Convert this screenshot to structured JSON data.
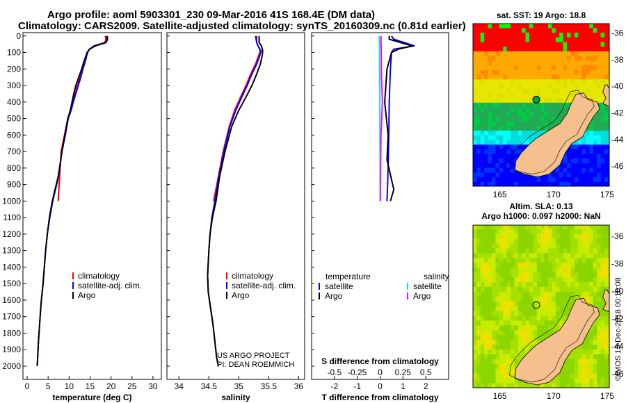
{
  "header": {
    "line1": "Argo profile: aoml 5903301_230 09-Mar-2016 41S 168.4E (DM data)",
    "line2": "Climatology: CARS2009. Satellite-adjusted climatology: synTS_20160309.nc (0.81d earlier)"
  },
  "colors": {
    "climatology": "#ff0000",
    "satellite": "#0000ff",
    "argo": "#000000",
    "satellite_s": "#00e5e5",
    "argo_s": "#ff00ff",
    "land": "#f5c08e"
  },
  "chart_data": [
    {
      "type": "line",
      "id": "temperature",
      "xlabel": "temperature (deg C)",
      "xlim": [
        -1,
        32
      ],
      "xticks": [
        0,
        5,
        10,
        15,
        20,
        25,
        30
      ],
      "ylim": [
        -20,
        2080
      ],
      "yticks": [
        0,
        100,
        200,
        300,
        400,
        500,
        600,
        700,
        800,
        900,
        1000,
        1100,
        1200,
        1300,
        1400,
        1500,
        1600,
        1700,
        1800,
        1900,
        2000
      ],
      "legend": [
        "climatology",
        "satellite-adj. clim.",
        "Argo"
      ],
      "series": [
        {
          "name": "climatology",
          "color": "#ff0000",
          "x": [
            18.6,
            18.8,
            18.5,
            16,
            14.8,
            14.3,
            13.8,
            13.2,
            12.6,
            12.0,
            11.4,
            10.9,
            10.4,
            9.7,
            8.9,
            8.1,
            7.4
          ],
          "y": [
            0,
            20,
            40,
            60,
            80,
            100,
            150,
            200,
            250,
            300,
            350,
            400,
            450,
            500,
            600,
            700,
            1000
          ]
        },
        {
          "name": "satellite-adj. clim.",
          "color": "#0000ff",
          "x": [
            19.1,
            19.2,
            18.8,
            16.3,
            14.9,
            14.4,
            13.9,
            13.3,
            12.8,
            12.2,
            11.6,
            11.0,
            10.5,
            9.8,
            9.1,
            8.3,
            7.5,
            6.1,
            5.4,
            4.8,
            4.4,
            3.8,
            3.4,
            3.1,
            2.7,
            2.4
          ],
          "y": [
            0,
            20,
            40,
            60,
            80,
            100,
            150,
            200,
            250,
            300,
            350,
            400,
            450,
            500,
            600,
            700,
            850,
            1000,
            1100,
            1200,
            1300,
            1500,
            1600,
            1700,
            1850,
            2000
          ]
        },
        {
          "name": "Argo",
          "color": "#000000",
          "x": [
            19.0,
            19.1,
            18.7,
            16.0,
            14.9,
            14.3,
            13.6,
            13.0,
            12.3,
            11.6,
            11.1,
            10.7,
            10.3,
            9.7,
            9.0,
            8.3,
            7.4,
            6.0,
            5.3,
            4.8,
            4.4,
            3.8,
            3.4,
            3.1,
            2.7,
            2.4
          ],
          "y": [
            0,
            20,
            40,
            60,
            80,
            100,
            150,
            200,
            250,
            300,
            350,
            400,
            450,
            500,
            600,
            700,
            850,
            1000,
            1100,
            1200,
            1300,
            1500,
            1600,
            1700,
            1850,
            2000
          ]
        }
      ]
    },
    {
      "type": "line",
      "id": "salinity",
      "xlabel": "salinity",
      "xlim": [
        33.8,
        36.1
      ],
      "xticks": [
        34,
        34.5,
        35,
        35.5,
        36
      ],
      "xtick_labels": [
        "34",
        "34.5",
        "35",
        "35.5",
        "36"
      ],
      "ylim": [
        -20,
        2080
      ],
      "legend": [
        "climatology",
        "satellite-adj. clim.",
        "Argo"
      ],
      "annotation": [
        "US ARGO PROJECT",
        "PI: DEAN ROEMMICH"
      ],
      "series": [
        {
          "name": "climatology",
          "color": "#ff0000",
          "x": [
            35.3,
            35.3,
            35.32,
            35.36,
            35.33,
            35.28,
            35.2,
            35.12,
            35.03,
            34.93,
            34.84,
            34.74,
            34.66,
            34.58
          ],
          "y": [
            0,
            40,
            60,
            90,
            120,
            170,
            230,
            300,
            370,
            450,
            550,
            700,
            850,
            1000
          ]
        },
        {
          "name": "satellite-adj. clim.",
          "color": "#0000ff",
          "x": [
            35.28,
            35.3,
            35.32,
            35.37,
            35.35,
            35.3,
            35.22,
            35.14,
            35.05,
            34.95,
            34.85,
            34.75,
            34.67,
            34.6,
            34.55,
            34.52,
            34.5,
            34.48,
            34.49,
            34.53,
            34.57,
            34.6,
            34.63,
            34.66
          ],
          "y": [
            0,
            40,
            60,
            90,
            120,
            170,
            230,
            300,
            370,
            450,
            550,
            700,
            850,
            1000,
            1100,
            1200,
            1300,
            1450,
            1550,
            1650,
            1750,
            1850,
            1950,
            2000
          ]
        },
        {
          "name": "Argo",
          "color": "#000000",
          "x": [
            35.34,
            35.34,
            35.38,
            35.4,
            35.39,
            35.36,
            35.3,
            35.22,
            35.12,
            35.0,
            34.88,
            34.77,
            34.68,
            34.62,
            34.56,
            34.52,
            34.5,
            34.48,
            34.49,
            34.53,
            34.57,
            34.6,
            34.63,
            34.66
          ],
          "y": [
            0,
            40,
            60,
            90,
            120,
            170,
            230,
            300,
            370,
            450,
            550,
            700,
            850,
            1000,
            1100,
            1200,
            1300,
            1450,
            1550,
            1650,
            1750,
            1850,
            1950,
            2000
          ]
        }
      ]
    },
    {
      "type": "line",
      "id": "differences",
      "xlabel": "T difference from climatology",
      "xlim": [
        -3,
        3
      ],
      "xticks": [
        -2,
        -1,
        0,
        1,
        2
      ],
      "top_axis_label": "S difference from climatology",
      "top_xticks": [
        -0.5,
        -0.25,
        0,
        0.25,
        0.5
      ],
      "top_xtick_labels": [
        "-0.5",
        "-0.25",
        "0",
        "0.25",
        "0.5"
      ],
      "ylim": [
        -20,
        2080
      ],
      "legend_titles": [
        "temperature",
        "salinity"
      ],
      "legend": [
        "satellite",
        "Argo",
        "satellite",
        "Argo"
      ],
      "series": [
        {
          "name": "T satellite",
          "color": "#0000ff",
          "x": [
            0.5,
            0.6,
            1.5,
            0.6,
            0.5,
            0.45,
            0.4,
            0.38,
            0.35,
            0.33,
            0.3
          ],
          "y": [
            0,
            20,
            60,
            80,
            100,
            200,
            400,
            600,
            800,
            900,
            1000
          ]
        },
        {
          "name": "T Argo",
          "color": "#000000",
          "x": [
            0.4,
            0.4,
            1.4,
            0.8,
            0.5,
            0.3,
            0.2,
            0.35,
            0.3,
            0.5,
            0.6,
            0.45
          ],
          "y": [
            0,
            20,
            60,
            80,
            100,
            200,
            400,
            600,
            750,
            870,
            930,
            1000
          ]
        },
        {
          "name": "S satellite",
          "color": "#00e5e5",
          "x": [
            -0.04,
            -0.02,
            -0.03,
            -0.02,
            -0.01,
            -0.01,
            0,
            0
          ],
          "y": [
            0,
            40,
            80,
            200,
            400,
            600,
            800,
            1000
          ]
        },
        {
          "name": "S Argo",
          "color": "#ff00ff",
          "x": [
            0.04,
            0.04,
            0.05,
            0.06,
            0.1,
            0.04,
            0.02,
            0.01
          ],
          "y": [
            0,
            40,
            80,
            250,
            400,
            600,
            800,
            1000
          ]
        }
      ]
    },
    {
      "type": "heatmap",
      "id": "sst-map",
      "title": "sat. SST: 19 Argo: 18.8",
      "xlim": [
        162.5,
        175.2
      ],
      "ylim": [
        -47.5,
        -35.3
      ],
      "xticks": [
        165,
        170,
        175
      ],
      "yticks": [
        -36,
        -38,
        -40,
        -42,
        -44,
        -46
      ],
      "float_marker": {
        "lon": 168.4,
        "lat": -41
      }
    },
    {
      "type": "heatmap",
      "id": "sla-map",
      "title": "Altim. SLA: 0.13",
      "subtitle": "Argo h1000: 0.097 h2000: NaN",
      "xlim": [
        162.5,
        175.2
      ],
      "ylim": [
        -47,
        -35.2
      ],
      "xticks": [
        165,
        170,
        175
      ],
      "yticks": [
        -36,
        -38,
        -40,
        -42,
        -44,
        -46
      ],
      "float_marker": {
        "lon": 168.4,
        "lat": -41
      }
    }
  ],
  "footer": {
    "stamp": "©IMOS 13-Dec-2018 00:10:08"
  }
}
